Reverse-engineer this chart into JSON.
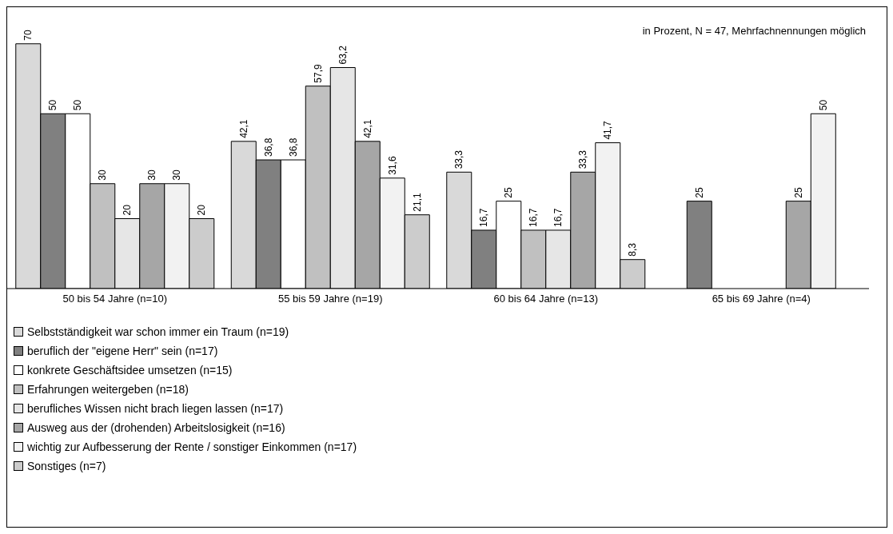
{
  "chart_data": {
    "type": "bar",
    "annotations": [
      "in Prozent, N = 47, Mehrfachnennungen möglich"
    ],
    "categories": [
      "50 bis 54 Jahre (n=10)",
      "55 bis 59 Jahre (n=19)",
      "60 bis 64 Jahre (n=13)",
      "65 bis 69 Jahre (n=4)"
    ],
    "series": [
      {
        "name": "Selbstständigkeit war schon immer ein Traum (n=19)",
        "color": "#d9d9d9",
        "values": [
          70,
          42.1,
          33.3,
          null
        ],
        "value_labels": [
          "70",
          "42,1",
          "33,3",
          null
        ]
      },
      {
        "name": "beruflich der \"eigene Herr\" sein (n=17)",
        "color": "#808080",
        "values": [
          50,
          36.8,
          16.7,
          25
        ],
        "value_labels": [
          "50",
          "36,8",
          "16,7",
          "25"
        ]
      },
      {
        "name": "konkrete Geschäftsidee umsetzen (n=15)",
        "color": "#ffffff",
        "values": [
          50,
          36.8,
          25,
          null
        ],
        "value_labels": [
          "50",
          "36,8",
          "25",
          null
        ]
      },
      {
        "name": "Erfahrungen weitergeben (n=18)",
        "color": "#c0c0c0",
        "values": [
          30,
          57.9,
          16.7,
          null
        ],
        "value_labels": [
          "30",
          "57,9",
          "16,7",
          null
        ]
      },
      {
        "name": "berufliches Wissen nicht brach liegen lassen (n=17)",
        "color": "#e6e6e6",
        "values": [
          20,
          63.2,
          16.7,
          null
        ],
        "value_labels": [
          "20",
          "63,2",
          "16,7",
          null
        ]
      },
      {
        "name": "Ausweg aus der (drohenden) Arbeitslosigkeit (n=16)",
        "color": "#a6a6a6",
        "values": [
          30,
          42.1,
          33.3,
          25
        ],
        "value_labels": [
          "30",
          "42,1",
          "33,3",
          "25"
        ]
      },
      {
        "name": "wichtig zur Aufbesserung der Rente / sonstiger Einkommen (n=17)",
        "color": "#f2f2f2",
        "values": [
          30,
          31.6,
          41.7,
          50
        ],
        "value_labels": [
          "30",
          "31,6",
          "41,7",
          "50"
        ]
      },
      {
        "name": "Sonstiges (n=7)",
        "color": "#cccccc",
        "values": [
          20,
          21.1,
          8.3,
          null
        ],
        "value_labels": [
          "20",
          "21,1",
          "8,3",
          null
        ]
      }
    ],
    "ylim": [
      0,
      80
    ],
    "tick_labels": "x",
    "grid": false,
    "legend": "bottom"
  }
}
